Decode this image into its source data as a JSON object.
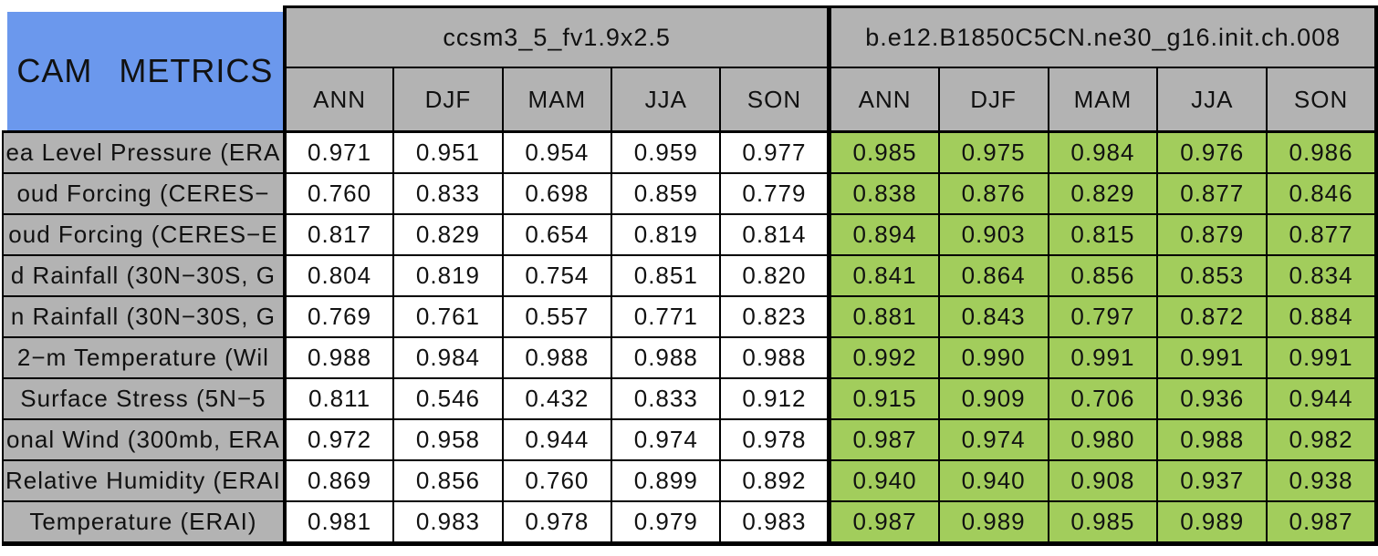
{
  "page_title": "CAM METRICS",
  "colors": {
    "title_blue": "#6b98ed",
    "header_gray": "#b3b3b3",
    "model1_cell_white": "#ffffff",
    "model2_cell_green": "#a2cd5c",
    "border_black": "#000000",
    "page_background": "#ffffff"
  },
  "chart_data": {
    "type": "table",
    "title": "CAM METRICS",
    "groups": [
      {
        "name": "ccsm3_5_fv1.9x2.5",
        "seasons": [
          "ANN",
          "DJF",
          "MAM",
          "JJA",
          "SON"
        ]
      },
      {
        "name": "b.e12.B1850C5CN.ne30_g16.init.ch.008",
        "seasons": [
          "ANN",
          "DJF",
          "MAM",
          "JJA",
          "SON"
        ]
      }
    ],
    "rows": [
      {
        "label": "ea Level Pressure (ERA",
        "model1_values": [
          "0.971",
          "0.951",
          "0.954",
          "0.959",
          "0.977"
        ],
        "model2_values": [
          "0.985",
          "0.975",
          "0.984",
          "0.976",
          "0.986"
        ]
      },
      {
        "label": "oud Forcing (CERES−",
        "model1_values": [
          "0.760",
          "0.833",
          "0.698",
          "0.859",
          "0.779"
        ],
        "model2_values": [
          "0.838",
          "0.876",
          "0.829",
          "0.877",
          "0.846"
        ]
      },
      {
        "label": "oud Forcing (CERES−E",
        "model1_values": [
          "0.817",
          "0.829",
          "0.654",
          "0.819",
          "0.814"
        ],
        "model2_values": [
          "0.894",
          "0.903",
          "0.815",
          "0.879",
          "0.877"
        ]
      },
      {
        "label": "d Rainfall (30N−30S, G",
        "model1_values": [
          "0.804",
          "0.819",
          "0.754",
          "0.851",
          "0.820"
        ],
        "model2_values": [
          "0.841",
          "0.864",
          "0.856",
          "0.853",
          "0.834"
        ]
      },
      {
        "label": "n Rainfall (30N−30S, G",
        "model1_values": [
          "0.769",
          "0.761",
          "0.557",
          "0.771",
          "0.823"
        ],
        "model2_values": [
          "0.881",
          "0.843",
          "0.797",
          "0.872",
          "0.884"
        ]
      },
      {
        "label": "2−m Temperature (Wil",
        "model1_values": [
          "0.988",
          "0.984",
          "0.988",
          "0.988",
          "0.988"
        ],
        "model2_values": [
          "0.992",
          "0.990",
          "0.991",
          "0.991",
          "0.991"
        ]
      },
      {
        "label": "Surface Stress (5N−5",
        "model1_values": [
          "0.811",
          "0.546",
          "0.432",
          "0.833",
          "0.912"
        ],
        "model2_values": [
          "0.915",
          "0.909",
          "0.706",
          "0.936",
          "0.944"
        ]
      },
      {
        "label": "onal Wind (300mb, ERA",
        "model1_values": [
          "0.972",
          "0.958",
          "0.944",
          "0.974",
          "0.978"
        ],
        "model2_values": [
          "0.987",
          "0.974",
          "0.980",
          "0.988",
          "0.982"
        ]
      },
      {
        "label": "Relative Humidity (ERAI",
        "model1_values": [
          "0.869",
          "0.856",
          "0.760",
          "0.899",
          "0.892"
        ],
        "model2_values": [
          "0.940",
          "0.940",
          "0.908",
          "0.937",
          "0.938"
        ]
      },
      {
        "label": "Temperature (ERAI)",
        "model1_values": [
          "0.981",
          "0.983",
          "0.978",
          "0.979",
          "0.983"
        ],
        "model2_values": [
          "0.987",
          "0.989",
          "0.985",
          "0.989",
          "0.987"
        ]
      }
    ]
  }
}
